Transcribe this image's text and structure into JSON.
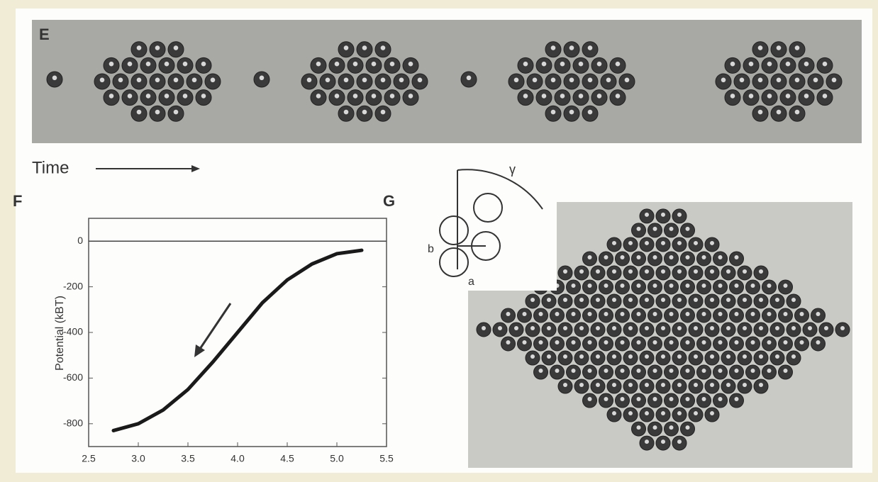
{
  "panels": {
    "e": "E",
    "f": "F",
    "g": "G"
  },
  "time_label": "Time",
  "diagram": {
    "angle": "γ",
    "spacing": "b",
    "diameter": "a"
  },
  "chart_data": {
    "type": "line",
    "y_label": "Potential (kBT)",
    "x": [
      2.75,
      3.0,
      3.25,
      3.5,
      3.75,
      4.0,
      4.25,
      4.5,
      4.75,
      5.0,
      5.25
    ],
    "values": [
      -830,
      -800,
      -740,
      -650,
      -530,
      -400,
      -270,
      -170,
      -100,
      -55,
      -40
    ],
    "color": "#1a1a1a",
    "xlim": [
      2.5,
      5.5
    ],
    "ylim": [
      -900,
      100
    ],
    "xticks": [
      2.5,
      {
        "value": 3,
        "label": "3.0"
      },
      3.5,
      {
        "value": 4,
        "label": "4.0"
      },
      4.5,
      {
        "value": 5,
        "label": "5.0"
      },
      5.5
    ],
    "yticks": [
      0,
      -200,
      -400,
      -600,
      -800
    ]
  }
}
